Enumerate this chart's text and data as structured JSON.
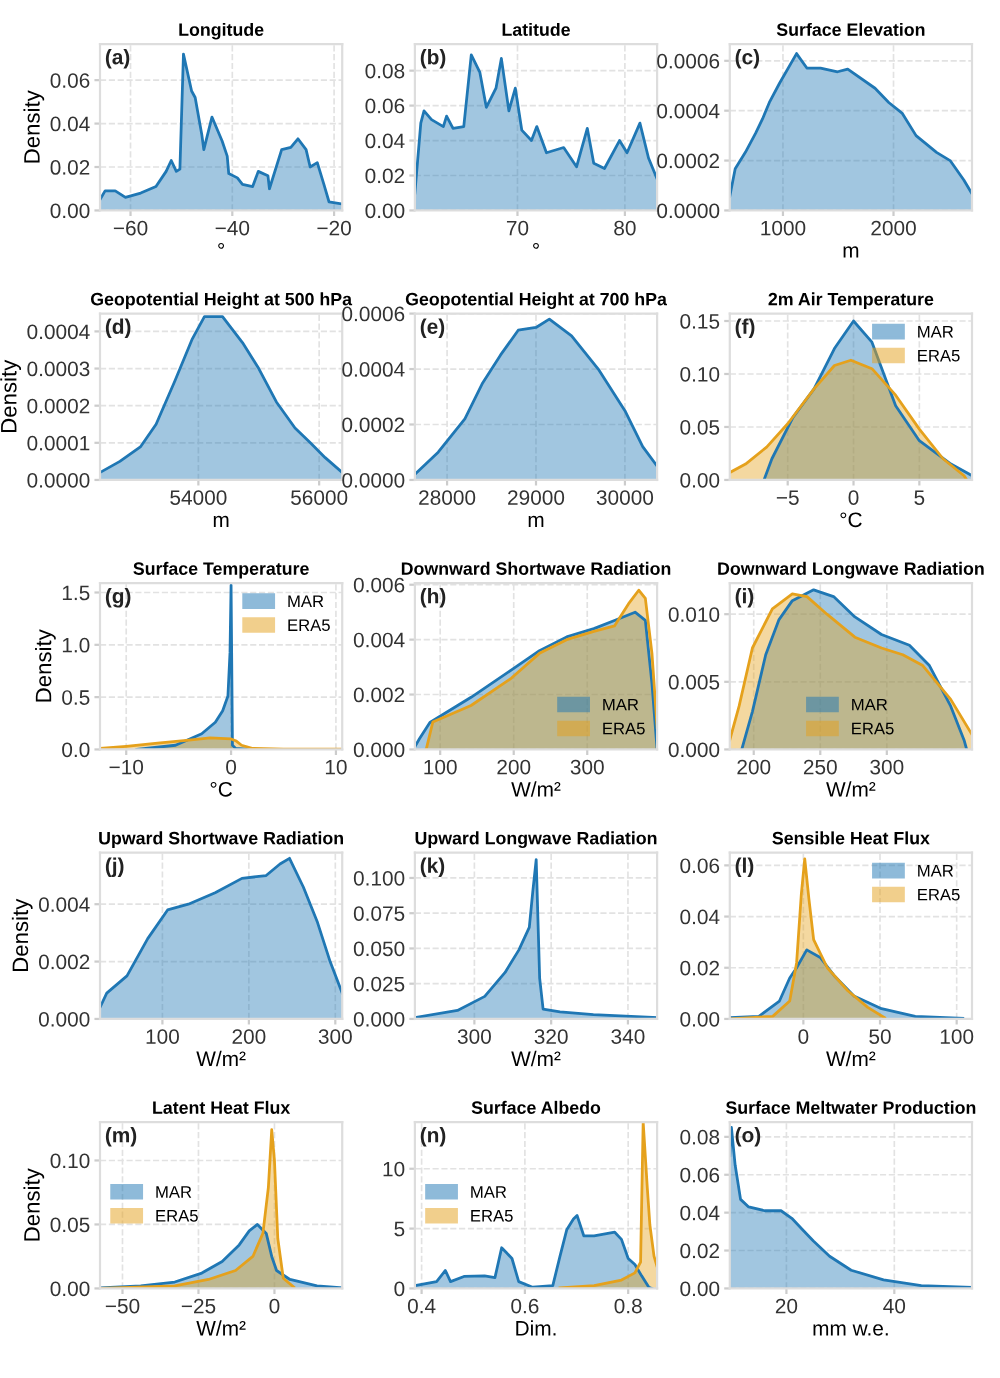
{
  "chart_data": [
    {
      "type": "area",
      "title": "Longitude",
      "xlabel": "°",
      "ylabel": "Density",
      "annotations": [
        "(a)"
      ],
      "grid": true,
      "xlim": [
        -66,
        -18.4
      ],
      "ylim": [
        0,
        0.0766
      ],
      "xticks": [
        {
          "value": -60,
          "label": "−60"
        },
        {
          "value": -40,
          "label": "−40"
        },
        {
          "value": -20,
          "label": "−20"
        }
      ],
      "yticks": [
        {
          "value": 0,
          "label": "0.00"
        },
        {
          "value": 0.02,
          "label": "0.02"
        },
        {
          "value": 0.04,
          "label": "0.04"
        },
        {
          "value": 0.06,
          "label": "0.06"
        }
      ],
      "series": [
        {
          "color": "#1f77b4",
          "x": [
            -66,
            -65,
            -63,
            -61,
            -58,
            -55,
            -53,
            -52,
            -51,
            -50.3,
            -49.6,
            -48,
            -47.3,
            -46,
            -45.6,
            -44,
            -42,
            -41,
            -40.7,
            -39,
            -38,
            -36,
            -34.9,
            -33,
            -32.7,
            -30.3,
            -28.5,
            -27.1,
            -25.5,
            -24.7,
            -23.3,
            -22,
            -21,
            -18.4
          ],
          "values": [
            0.005,
            0.009,
            0.009,
            0.006,
            0.008,
            0.011,
            0.018,
            0.023,
            0.018,
            0.019,
            0.072,
            0.055,
            0.052,
            0.035,
            0.028,
            0.043,
            0.032,
            0.025,
            0.017,
            0.015,
            0.012,
            0.011,
            0.018,
            0.016,
            0.01,
            0.028,
            0.029,
            0.033,
            0.028,
            0.02,
            0.022,
            0.012,
            0.004,
            0.003
          ]
        }
      ]
    },
    {
      "type": "area",
      "title": "Latitude",
      "xlabel": "°",
      "annotations": [
        "(b)"
      ],
      "grid": true,
      "xlim": [
        60.45,
        83
      ],
      "ylim": [
        0,
        0.0952
      ],
      "xticks": [
        70,
        80
      ],
      "yticks": [
        {
          "value": 0,
          "label": "0.00"
        },
        {
          "value": 0.02,
          "label": "0.02"
        },
        {
          "value": 0.04,
          "label": "0.04"
        },
        {
          "value": 0.06,
          "label": "0.06"
        },
        {
          "value": 0.08,
          "label": "0.08"
        }
      ],
      "series": [
        {
          "color": "#1f77b4",
          "x": [
            60.45,
            61.0,
            61.3,
            62,
            63.1,
            63.4,
            64,
            65,
            65.7,
            66.5,
            67.1,
            68,
            68.5,
            69.2,
            69.8,
            70.4,
            71.3,
            71.8,
            72.7,
            74.3,
            75.5,
            76.5,
            77.1,
            78.1,
            79.5,
            80.2,
            81.4,
            82.2,
            83
          ],
          "values": [
            0.01,
            0.05,
            0.057,
            0.052,
            0.048,
            0.054,
            0.047,
            0.048,
            0.089,
            0.079,
            0.059,
            0.07,
            0.087,
            0.057,
            0.07,
            0.046,
            0.04,
            0.048,
            0.033,
            0.036,
            0.025,
            0.047,
            0.027,
            0.024,
            0.04,
            0.033,
            0.05,
            0.03,
            0.018
          ]
        }
      ]
    },
    {
      "type": "area",
      "title": "Surface Elevation",
      "xlabel": "m",
      "annotations": [
        "(c)"
      ],
      "grid": true,
      "xlim": [
        519,
        2710
      ],
      "ylim": [
        0,
        0.000667
      ],
      "xticks": [
        1000,
        2000
      ],
      "yticks": [
        {
          "value": 0,
          "label": "0.0000"
        },
        {
          "value": 0.0002,
          "label": "0.0002"
        },
        {
          "value": 0.0004,
          "label": "0.0004"
        },
        {
          "value": 0.0006,
          "label": "0.0006"
        }
      ],
      "series": [
        {
          "color": "#1f77b4",
          "x": [
            519,
            568,
            660,
            753,
            815,
            877,
            969,
            1123,
            1216,
            1340,
            1494,
            1586,
            1833,
            1957,
            2080,
            2204,
            2389,
            2512,
            2636,
            2710
          ],
          "values": [
            5.6e-05,
            0.000167,
            0.000233,
            0.00031,
            0.000367,
            0.000433,
            0.00051,
            0.000629,
            0.000571,
            0.000571,
            0.000556,
            0.000567,
            0.00049,
            0.000433,
            0.000389,
            0.0003,
            0.000233,
            0.0002,
            0.000122,
            6.7e-05
          ]
        }
      ]
    },
    {
      "type": "area",
      "title": "Geopotential Height at 500 hPa",
      "xlabel": "m",
      "ylabel": "Density",
      "annotations": [
        "(d)"
      ],
      "grid": true,
      "xlim": [
        52371,
        56382
      ],
      "ylim": [
        0,
        0.000448
      ],
      "xticks": [
        54000,
        56000
      ],
      "yticks": [
        {
          "value": 0,
          "label": "0.0000"
        },
        {
          "value": 0.0001,
          "label": "0.0001"
        },
        {
          "value": 0.0002,
          "label": "0.0002"
        },
        {
          "value": 0.0003,
          "label": "0.0003"
        },
        {
          "value": 0.0004,
          "label": "0.0004"
        }
      ],
      "series": [
        {
          "color": "#1f77b4",
          "x": [
            52371,
            52700,
            53045,
            53300,
            53607,
            53900,
            54100,
            54400,
            54730,
            55000,
            55292,
            55600,
            55854,
            56100,
            56382
          ],
          "values": [
            2e-05,
            5e-05,
            9e-05,
            0.00015,
            0.000265,
            0.00038,
            0.00044,
            0.00044,
            0.00037,
            0.0003,
            0.00021,
            0.00014,
            0.0001,
            6e-05,
            2e-05
          ]
        }
      ]
    },
    {
      "type": "area",
      "title": "Geopotential Height at 700 hPa",
      "xlabel": "m",
      "annotations": [
        "(e)"
      ],
      "grid": true,
      "xlim": [
        27638,
        30362
      ],
      "ylim": [
        0,
        0.0006
      ],
      "xticks": [
        28000,
        29000,
        30000
      ],
      "yticks": [
        {
          "value": 0,
          "label": "0.0000"
        },
        {
          "value": 0.0002,
          "label": "0.0002"
        },
        {
          "value": 0.0004,
          "label": "0.0004"
        },
        {
          "value": 0.0006,
          "label": "0.0006"
        }
      ],
      "series": [
        {
          "color": "#1f77b4",
          "x": [
            27638,
            27900,
            28200,
            28400,
            28600,
            28800,
            29000,
            29150,
            29400,
            29700,
            30000,
            30200,
            30362
          ],
          "values": [
            2e-05,
            0.0001,
            0.00022,
            0.00035,
            0.00045,
            0.00054,
            0.00055,
            0.00058,
            0.00052,
            0.0004,
            0.00025,
            0.00012,
            5e-05
          ]
        }
      ]
    },
    {
      "type": "area",
      "title": "2m Air Temperature",
      "xlabel": "°C",
      "annotations": [
        "(f)"
      ],
      "grid": true,
      "legend": "top right",
      "xlim": [
        -9.4,
        9
      ],
      "ylim": [
        0,
        0.157
      ],
      "xticks": [
        {
          "value": -5,
          "label": "−5"
        },
        0,
        5
      ],
      "yticks": [
        {
          "value": 0,
          "label": "0.00"
        },
        {
          "value": 0.05,
          "label": "0.05"
        },
        {
          "value": 0.1,
          "label": "0.10"
        },
        {
          "value": 0.15,
          "label": "0.15"
        }
      ],
      "series": [
        {
          "name": "MAR",
          "color": "#1f77b4",
          "x": [
            -6.8,
            -6.2,
            -4.6,
            -3,
            -1.45,
            0,
            1.4,
            3.2,
            5,
            7.4,
            9
          ],
          "values": [
            0,
            0.02,
            0.059,
            0.086,
            0.124,
            0.15,
            0.13,
            0.07,
            0.037,
            0.015,
            0.004
          ]
        },
        {
          "name": "ERA5",
          "color": "#e5a11c",
          "x": [
            -9.4,
            -8.2,
            -6.6,
            -5,
            -3,
            -1.45,
            -0.2,
            1.4,
            3.2,
            5,
            6.8,
            8.4,
            8.6
          ],
          "values": [
            0.007,
            0.015,
            0.031,
            0.053,
            0.086,
            0.108,
            0.113,
            0.105,
            0.08,
            0.048,
            0.02,
            0.004,
            0
          ]
        }
      ]
    },
    {
      "type": "area",
      "title": "Surface Temperature",
      "xlabel": "°C",
      "ylabel": "Density",
      "annotations": [
        "(g)"
      ],
      "grid": true,
      "legend": "top right",
      "xlim": [
        -12.5,
        10.6
      ],
      "ylim": [
        0,
        1.59
      ],
      "xticks": [
        {
          "value": -10,
          "label": "−10"
        },
        0,
        10
      ],
      "yticks": [
        {
          "value": 0,
          "label": "0.0"
        },
        0.5,
        {
          "value": 1,
          "label": "1.0"
        },
        1.5
      ],
      "series": [
        {
          "name": "MAR",
          "color": "#1f77b4",
          "x": [
            -9,
            -5.3,
            -2.8,
            -1.5,
            -0.8,
            -0.3,
            -0.1,
            0,
            0.13,
            0.45,
            2
          ],
          "values": [
            0,
            0.04,
            0.15,
            0.26,
            0.37,
            0.51,
            0.93,
            1.57,
            0.04,
            0.01,
            0
          ]
        },
        {
          "name": "ERA5",
          "color": "#e5a11c",
          "x": [
            -12.5,
            -10,
            -7,
            -4,
            -2,
            0,
            0.5,
            1,
            2,
            5,
            10.6
          ],
          "values": [
            0.01,
            0.03,
            0.06,
            0.09,
            0.11,
            0.1,
            0.08,
            0.04,
            0.01,
            0.003,
            0.002
          ]
        }
      ]
    },
    {
      "type": "area",
      "title": "Downward Shortwave Radiation",
      "xlabel": "W/m²",
      "annotations": [
        "(h)"
      ],
      "grid": true,
      "legend": "bottom right",
      "xlim": [
        65.6,
        395
      ],
      "ylim": [
        0,
        0.00606
      ],
      "xticks": [
        100,
        200,
        300
      ],
      "yticks": [
        {
          "value": 0,
          "label": "0.000"
        },
        {
          "value": 0.002,
          "label": "0.002"
        },
        {
          "value": 0.004,
          "label": "0.004"
        },
        {
          "value": 0.006,
          "label": "0.006"
        }
      ],
      "series": [
        {
          "name": "MAR",
          "color": "#1f77b4",
          "x": [
            65.6,
            72,
            86,
            142,
            197,
            235,
            272,
            309,
            337,
            365,
            379,
            388,
            395
          ],
          "values": [
            0.0001,
            0.0004,
            0.00098,
            0.0019,
            0.0029,
            0.0036,
            0.0041,
            0.0044,
            0.0047,
            0.005,
            0.0047,
            0.0024,
            0
          ]
        },
        {
          "name": "ERA5",
          "color": "#e5a11c",
          "x": [
            81,
            90,
            142,
            197,
            235,
            272,
            309,
            337,
            356,
            370,
            379,
            388,
            395
          ],
          "values": [
            0,
            0.001,
            0.0016,
            0.0026,
            0.0035,
            0.004,
            0.0043,
            0.0045,
            0.0053,
            0.0058,
            0.0055,
            0.0035,
            0.0008
          ]
        }
      ]
    },
    {
      "type": "area",
      "title": "Downward Longwave Radiation",
      "xlabel": "W/m²",
      "annotations": [
        "(i)"
      ],
      "grid": true,
      "legend": "bottom",
      "xlim": [
        182,
        364
      ],
      "ylim": [
        0,
        0.0123
      ],
      "xticks": [
        200,
        250,
        300
      ],
      "yticks": [
        {
          "value": 0,
          "label": "0.000"
        },
        {
          "value": 0.005,
          "label": "0.005"
        },
        {
          "value": 0.01,
          "label": "0.010"
        }
      ],
      "series": [
        {
          "name": "MAR",
          "color": "#1f77b4",
          "x": [
            191,
            199,
            209,
            219,
            229,
            245,
            260,
            276,
            296,
            317,
            332,
            348,
            358,
            360
          ],
          "values": [
            0,
            0.0028,
            0.007,
            0.0096,
            0.011,
            0.0118,
            0.0113,
            0.0098,
            0.0085,
            0.0077,
            0.0062,
            0.0032,
            0.0007,
            0
          ]
        },
        {
          "name": "ERA5",
          "color": "#e5a11c",
          "x": [
            182,
            189,
            199,
            214,
            229,
            240,
            255,
            276,
            296,
            312,
            327,
            348,
            364
          ],
          "values": [
            0.0007,
            0.0032,
            0.0075,
            0.0104,
            0.0115,
            0.0113,
            0.01,
            0.0083,
            0.0075,
            0.007,
            0.0062,
            0.0037,
            0.0011
          ]
        }
      ]
    },
    {
      "type": "area",
      "title": "Upward Shortwave Radiation",
      "xlabel": "W/m²",
      "ylabel": "Density",
      "annotations": [
        "(j)"
      ],
      "grid": true,
      "xlim": [
        27.8,
        308
      ],
      "ylim": [
        0,
        0.0058
      ],
      "xticks": [
        100,
        200,
        300
      ],
      "yticks": [
        {
          "value": 0,
          "label": "0.000"
        },
        {
          "value": 0.002,
          "label": "0.002"
        },
        {
          "value": 0.004,
          "label": "0.004"
        }
      ],
      "series": [
        {
          "color": "#1f77b4",
          "x": [
            27.8,
            35.6,
            59,
            83,
            106,
            130,
            161,
            192,
            220,
            236,
            247,
            263,
            279,
            294,
            308
          ],
          "values": [
            0.0004,
            0.0009,
            0.0015,
            0.0028,
            0.0038,
            0.004,
            0.0044,
            0.0049,
            0.005,
            0.0054,
            0.0056,
            0.0046,
            0.0034,
            0.002,
            0.0009
          ]
        }
      ]
    },
    {
      "type": "area",
      "title": "Upward Longwave Radiation",
      "xlabel": "W/m²",
      "annotations": [
        "(k)"
      ],
      "grid": true,
      "xlim": [
        284.5,
        347.6
      ],
      "ylim": [
        0,
        0.118
      ],
      "xticks": [
        300,
        320,
        340
      ],
      "yticks": [
        {
          "value": 0,
          "label": "0.000"
        },
        {
          "value": 0.025,
          "label": "0.025"
        },
        {
          "value": 0.05,
          "label": "0.050"
        },
        {
          "value": 0.075,
          "label": "0.075"
        },
        {
          "value": 0.1,
          "label": "0.100"
        }
      ],
      "series": [
        {
          "color": "#1f77b4",
          "x": [
            284.5,
            295.6,
            302.7,
            308,
            311.6,
            314.3,
            315.2,
            316.1,
            317,
            317.9,
            322.3,
            331,
            347.6
          ],
          "values": [
            0.001,
            0.006,
            0.016,
            0.033,
            0.049,
            0.065,
            0.09,
            0.113,
            0.029,
            0.007,
            0.005,
            0.003,
            0.001
          ]
        }
      ]
    },
    {
      "type": "area",
      "title": "Sensible Heat Flux",
      "xlabel": "W/m²",
      "annotations": [
        "(l)"
      ],
      "grid": true,
      "legend": "top right",
      "xlim": [
        -48,
        110
      ],
      "ylim": [
        0,
        0.065
      ],
      "xticks": [
        0,
        50,
        100
      ],
      "yticks": [
        {
          "value": 0,
          "label": "0.00"
        },
        {
          "value": 0.02,
          "label": "0.02"
        },
        {
          "value": 0.04,
          "label": "0.04"
        },
        {
          "value": 0.06,
          "label": "0.06"
        }
      ],
      "series": [
        {
          "name": "MAR",
          "color": "#1f77b4",
          "x": [
            -48,
            -29,
            -15.6,
            -8.9,
            -4.4,
            2.2,
            11,
            20,
            33,
            51,
            73,
            104
          ],
          "values": [
            0.0005,
            0.001,
            0.007,
            0.016,
            0.02,
            0.027,
            0.024,
            0.017,
            0.009,
            0.004,
            0.001,
            0.0002
          ]
        },
        {
          "name": "ERA5",
          "color": "#e5a11c",
          "x": [
            -48,
            -20,
            -8.9,
            -4.4,
            -1.3,
            0.9,
            3.6,
            6.7,
            15.6,
            29,
            42,
            53
          ],
          "values": [
            0,
            0.001,
            0.007,
            0.022,
            0.049,
            0.0625,
            0.047,
            0.031,
            0.02,
            0.011,
            0.0045,
            0.0005
          ]
        }
      ]
    },
    {
      "type": "area",
      "title": "Latent Heat Flux",
      "xlabel": "W/m²",
      "ylabel": "Density",
      "annotations": [
        "(m)"
      ],
      "grid": true,
      "legend": "left",
      "xlim": [
        -57.4,
        22.3
      ],
      "ylim": [
        0,
        0.13
      ],
      "xticks": [
        {
          "value": -50,
          "label": "−50"
        },
        {
          "value": -25,
          "label": "−25"
        },
        0
      ],
      "yticks": [
        {
          "value": 0,
          "label": "0.00"
        },
        {
          "value": 0.05,
          "label": "0.05"
        },
        {
          "value": 0.1,
          "label": "0.10"
        }
      ],
      "series": [
        {
          "name": "MAR",
          "color": "#1f77b4",
          "x": [
            -57.4,
            -44,
            -32.8,
            -23.9,
            -17.2,
            -11.6,
            -8.3,
            -5.6,
            -2.7,
            -0.9,
            0.7,
            5.1,
            14,
            22.3
          ],
          "values": [
            0.0005,
            0.002,
            0.005,
            0.012,
            0.021,
            0.034,
            0.045,
            0.05,
            0.043,
            0.025,
            0.014,
            0.007,
            0.002,
            0.0005
          ]
        },
        {
          "name": "ERA5",
          "color": "#e5a11c",
          "x": [
            -57.4,
            -32.8,
            -21.7,
            -12.8,
            -7.1,
            -3.8,
            -2,
            -0.9,
            0,
            1.1,
            2.9,
            6.4
          ],
          "values": [
            0,
            0.002,
            0.007,
            0.014,
            0.025,
            0.043,
            0.079,
            0.124,
            0.1,
            0.039,
            0.008,
            0.001
          ]
        }
      ]
    },
    {
      "type": "area",
      "title": "Surface Albedo",
      "xlabel": "Dim.",
      "annotations": [
        "(n)"
      ],
      "grid": true,
      "legend": "left",
      "xlim": [
        0.387,
        0.856
      ],
      "ylim": [
        0,
        13.9
      ],
      "xticks": [
        0.4,
        0.6,
        0.8
      ],
      "yticks": [
        0,
        5,
        10
      ],
      "series": [
        {
          "name": "MAR",
          "color": "#1f77b4",
          "x": [
            0.387,
            0.429,
            0.446,
            0.456,
            0.482,
            0.522,
            0.542,
            0.555,
            0.564,
            0.575,
            0.588,
            0.615,
            0.654,
            0.668,
            0.681,
            0.694,
            0.701,
            0.714,
            0.734,
            0.774,
            0.787,
            0.8,
            0.813,
            0.826,
            0.84,
            0.846
          ],
          "values": [
            0.24,
            0.57,
            1.5,
            0.57,
            1.0,
            1.05,
            0.9,
            3.4,
            3.0,
            2.5,
            0.57,
            0.1,
            0.24,
            2.7,
            4.9,
            5.8,
            6.1,
            4.4,
            4.4,
            4.7,
            4.1,
            2.5,
            2.0,
            1.05,
            0.1,
            0
          ]
        },
        {
          "name": "ERA5",
          "color": "#e5a11c",
          "x": [
            0.668,
            0.734,
            0.787,
            0.813,
            0.824,
            0.829,
            0.837,
            0.842,
            0.85,
            0.856
          ],
          "values": [
            0.05,
            0.24,
            0.7,
            1.3,
            2.2,
            13.9,
            8.4,
            5.3,
            2.7,
            1.8
          ]
        }
      ]
    },
    {
      "type": "area",
      "title": "Surface Meltwater Production",
      "xlabel": "mm w.e.",
      "annotations": [
        "(o)"
      ],
      "grid": true,
      "xlim": [
        9.5,
        54.4
      ],
      "ylim": [
        0,
        0.0878
      ],
      "xticks": [
        20,
        40
      ],
      "yticks": [
        {
          "value": 0,
          "label": "0.00"
        },
        {
          "value": 0.02,
          "label": "0.02"
        },
        {
          "value": 0.04,
          "label": "0.04"
        },
        {
          "value": 0.06,
          "label": "0.06"
        },
        {
          "value": 0.08,
          "label": "0.08"
        }
      ],
      "series": [
        {
          "color": "#1f77b4",
          "x": [
            9.5,
            9.8,
            10.5,
            11.5,
            13,
            16,
            19,
            21,
            23,
            25,
            28,
            32,
            38,
            45,
            54.4
          ],
          "values": [
            0.07,
            0.085,
            0.065,
            0.047,
            0.043,
            0.041,
            0.041,
            0.037,
            0.031,
            0.025,
            0.017,
            0.0096,
            0.0045,
            0.0015,
            0.0005
          ]
        }
      ]
    }
  ]
}
